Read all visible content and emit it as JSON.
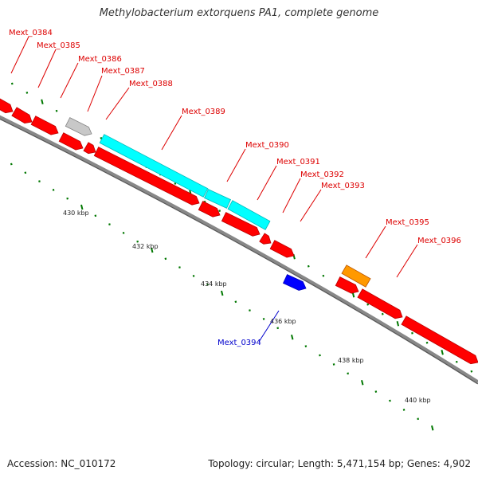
{
  "title": "Methylobacterium extorquens PA1, complete genome",
  "footer": {
    "accession": "Accession: NC_010172",
    "summary": "Topology: circular; Length: 5,471,154 bp; Genes: 4,902"
  },
  "colors": {
    "forward_gene": "#ff0000",
    "reverse_gene": "#0000ff",
    "cyan_gene": "#00ffff",
    "gray_gene": "#c8c8c8",
    "orange_gene": "#ff9900",
    "backbone": "#888888",
    "tick": "#007700",
    "label_red": "#dd0000",
    "label_blue": "#0000cc"
  },
  "kbp_ticks": [
    "430 kbp",
    "432 kbp",
    "434 kbp",
    "436 kbp",
    "438 kbp",
    "440 kbp"
  ],
  "gene_labels": [
    {
      "text": "Mext_0384",
      "color": "red"
    },
    {
      "text": "Mext_0385",
      "color": "red"
    },
    {
      "text": "Mext_0386",
      "color": "red"
    },
    {
      "text": "Mext_0387",
      "color": "red"
    },
    {
      "text": "Mext_0388",
      "color": "red"
    },
    {
      "text": "Mext_0389",
      "color": "red"
    },
    {
      "text": "Mext_0390",
      "color": "red"
    },
    {
      "text": "Mext_0391",
      "color": "red"
    },
    {
      "text": "Mext_0392",
      "color": "red"
    },
    {
      "text": "Mext_0393",
      "color": "red"
    },
    {
      "text": "Mext_0395",
      "color": "red"
    },
    {
      "text": "Mext_0396",
      "color": "red"
    },
    {
      "text": "Mext_0394",
      "color": "blue"
    }
  ]
}
